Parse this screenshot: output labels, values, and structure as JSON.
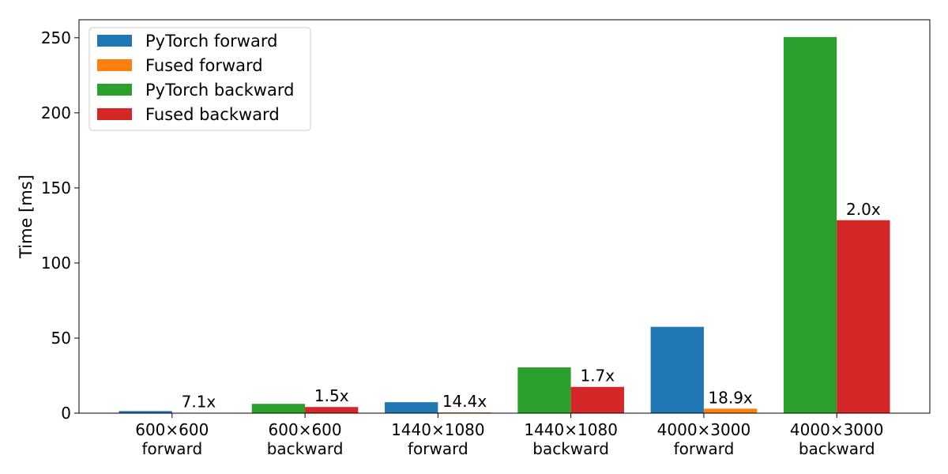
{
  "chart_data": {
    "type": "bar",
    "title": "",
    "xlabel": "",
    "ylabel": "Time [ms]",
    "ylim": [
      0,
      262
    ],
    "yticks": [
      0,
      50,
      100,
      150,
      200,
      250
    ],
    "grid": false,
    "legend": {
      "position": "top-left"
    },
    "groups": [
      {
        "label_lines": [
          "600×600",
          "forward"
        ],
        "bars": [
          {
            "series": "PyTorch forward",
            "value": 1.4
          },
          {
            "series": "Fused forward",
            "value": 0.2
          }
        ],
        "annotation": "7.1x"
      },
      {
        "label_lines": [
          "600×600",
          "backward"
        ],
        "bars": [
          {
            "series": "PyTorch backward",
            "value": 6.2
          },
          {
            "series": "Fused backward",
            "value": 4.1
          }
        ],
        "annotation": "1.5x"
      },
      {
        "label_lines": [
          "1440×1080",
          "forward"
        ],
        "bars": [
          {
            "series": "PyTorch forward",
            "value": 7.3
          },
          {
            "series": "Fused forward",
            "value": 0.5
          }
        ],
        "annotation": "14.4x"
      },
      {
        "label_lines": [
          "1440×1080",
          "backward"
        ],
        "bars": [
          {
            "series": "PyTorch backward",
            "value": 30.5
          },
          {
            "series": "Fused backward",
            "value": 17.5
          }
        ],
        "annotation": "1.7x"
      },
      {
        "label_lines": [
          "4000×3000",
          "forward"
        ],
        "bars": [
          {
            "series": "PyTorch forward",
            "value": 57.5
          },
          {
            "series": "Fused forward",
            "value": 3.0
          }
        ],
        "annotation": "18.9x"
      },
      {
        "label_lines": [
          "4000×3000",
          "backward"
        ],
        "bars": [
          {
            "series": "PyTorch backward",
            "value": 250.5
          },
          {
            "series": "Fused backward",
            "value": 128.5
          }
        ],
        "annotation": "2.0x"
      }
    ],
    "series": [
      {
        "name": "PyTorch forward",
        "color": "#1f77b4"
      },
      {
        "name": "Fused forward",
        "color": "#ff7f0e"
      },
      {
        "name": "PyTorch backward",
        "color": "#2ca02c"
      },
      {
        "name": "Fused backward",
        "color": "#d62728"
      }
    ]
  }
}
